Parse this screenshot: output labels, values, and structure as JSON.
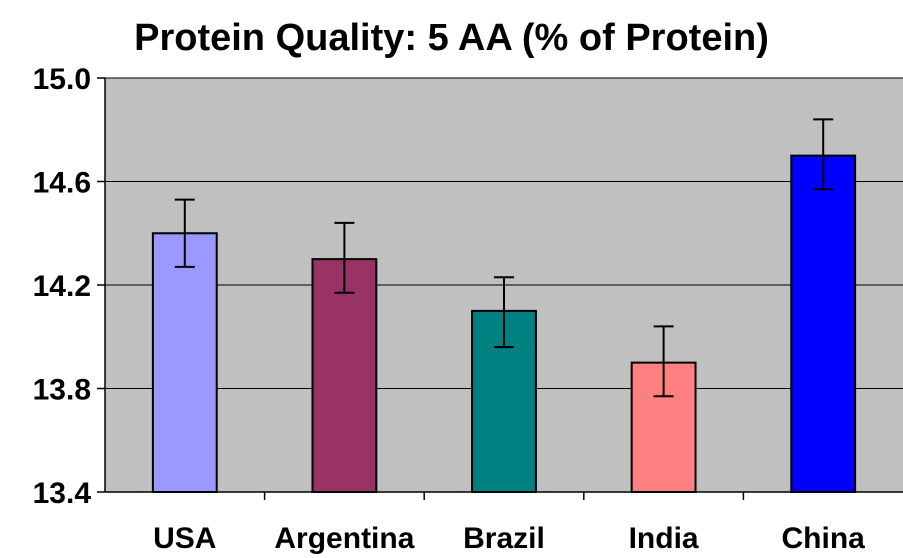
{
  "chart_data": {
    "type": "bar",
    "title": "Protein Quality: 5 AA (% of Protein)",
    "xlabel": "",
    "ylabel": "",
    "categories": [
      "USA",
      "Argentina",
      "Brazil",
      "India",
      "China"
    ],
    "values": [
      14.4,
      14.3,
      14.1,
      13.9,
      14.7
    ],
    "error_low": [
      14.27,
      14.17,
      13.96,
      13.77,
      14.57
    ],
    "error_high": [
      14.53,
      14.44,
      14.23,
      14.04,
      14.84
    ],
    "ylim": [
      13.4,
      15.0
    ],
    "yticks": [
      "13.4",
      "13.8",
      "14.2",
      "14.6",
      "15.0"
    ],
    "grid": true,
    "legend": "none",
    "colors": [
      "#9999ff",
      "#993366",
      "#008080",
      "#ff8080",
      "#0000ff"
    ],
    "plot_background": "#c0c0c0"
  }
}
